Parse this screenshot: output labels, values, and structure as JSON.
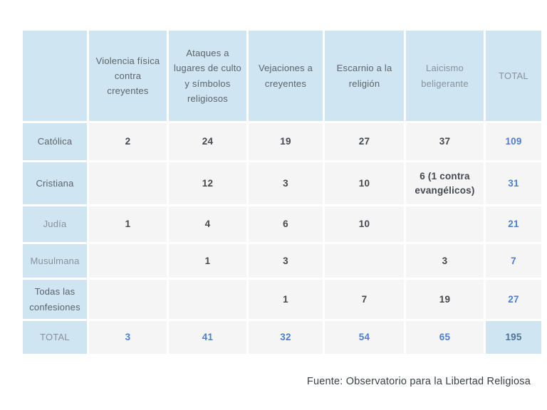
{
  "colors": {
    "header_bg": "#cfe5f2",
    "data_cell_bg": "#f5f5f6",
    "label_text": "#5d646a",
    "muted_label_text": "#87929a",
    "number_text": "#45494e",
    "total_text_blue": "#4c7ed2",
    "grand_total_text": "#4e7397",
    "page_bg": "#ffffff"
  },
  "table": {
    "columns": [
      {
        "label": "",
        "muted": false
      },
      {
        "label": "Violencia física contra creyentes",
        "muted": false
      },
      {
        "label": "Ataques a lugares de culto y símbolos religiosos",
        "muted": false
      },
      {
        "label": "Vejaciones a creyentes",
        "muted": false
      },
      {
        "label": "Escarnio a la religión",
        "muted": false
      },
      {
        "label": "Laicismo beligerante",
        "muted": true
      },
      {
        "label": "TOTAL",
        "muted": true
      }
    ],
    "rows": [
      {
        "id": "catolica",
        "label": "Católica",
        "muted": false,
        "is_total_row": false,
        "values": [
          "2",
          "24",
          "19",
          "27",
          "37",
          "109"
        ]
      },
      {
        "id": "cristiana",
        "label": "Cristiana",
        "muted": false,
        "is_total_row": false,
        "values": [
          "",
          "12",
          "3",
          "10",
          "6 (1 contra evangélicos)",
          "31"
        ]
      },
      {
        "id": "judia",
        "label": "Judía",
        "muted": true,
        "is_total_row": false,
        "values": [
          "1",
          "4",
          "6",
          "10",
          "",
          "21"
        ]
      },
      {
        "id": "musulmana",
        "label": "Musulmana",
        "muted": true,
        "is_total_row": false,
        "values": [
          "",
          "1",
          "3",
          "",
          "3",
          "7"
        ]
      },
      {
        "id": "todas-las-confesiones",
        "label": "Todas las confesiones",
        "muted": false,
        "is_total_row": false,
        "values": [
          "",
          "",
          "1",
          "7",
          "19",
          "27"
        ]
      },
      {
        "id": "total",
        "label": "TOTAL",
        "muted": true,
        "is_total_row": true,
        "values": [
          "3",
          "41",
          "32",
          "54",
          "65",
          "195"
        ]
      }
    ]
  },
  "footer": {
    "source": "Fuente: Observatorio para la Libertad Religiosa"
  }
}
